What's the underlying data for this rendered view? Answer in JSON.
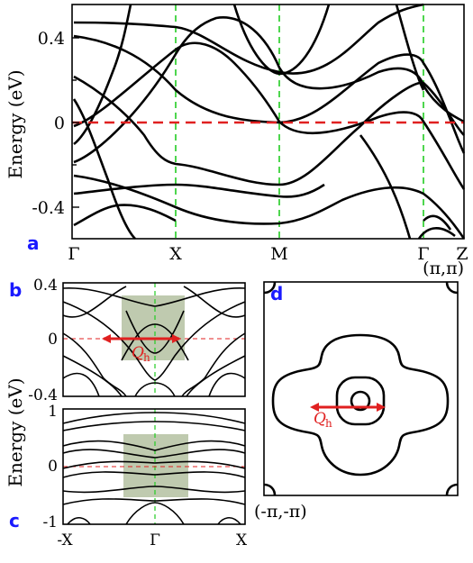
{
  "chart_data": [
    {
      "panel": "a",
      "type": "line",
      "ylabel": "Energy (eV)",
      "ylim": [
        -0.55,
        0.55
      ],
      "y_ticks": [
        "0.4",
        "0",
        "-0.4"
      ],
      "y_tick_values": [
        0.4,
        0,
        -0.4
      ],
      "x_ticks": [
        "Γ",
        "X",
        "M",
        "Γ",
        "Z"
      ],
      "fermi_level": 0,
      "fermi_line_color": "#e02020",
      "kpoint_line_color": "#22cc22",
      "band_color": "#000000"
    },
    {
      "panel": "b",
      "type": "line",
      "y_ticks": [
        "0.4",
        "0",
        "-0.4"
      ],
      "y_tick_values": [
        0.4,
        0,
        -0.4
      ],
      "ylim": [
        -0.4,
        0.4
      ],
      "annotation": "Q",
      "annotation_sub": "h",
      "highlight_color": "#a9b894"
    },
    {
      "panel": "c",
      "type": "line",
      "ylabel": "Energy (eV)",
      "y_ticks": [
        "1",
        "0",
        "-1"
      ],
      "y_tick_values": [
        1,
        0,
        -1
      ],
      "ylim": [
        -1,
        1
      ],
      "x_ticks": [
        "-X",
        "Γ",
        "X"
      ]
    },
    {
      "panel": "d",
      "type": "line",
      "corner_labels": [
        "(π,π)",
        "(-π,-π)"
      ],
      "annotation": "Q",
      "annotation_sub": "h"
    }
  ],
  "panel_labels": {
    "a": "a",
    "b": "b",
    "c": "c",
    "d": "d"
  },
  "arrow_color": "#e02020"
}
